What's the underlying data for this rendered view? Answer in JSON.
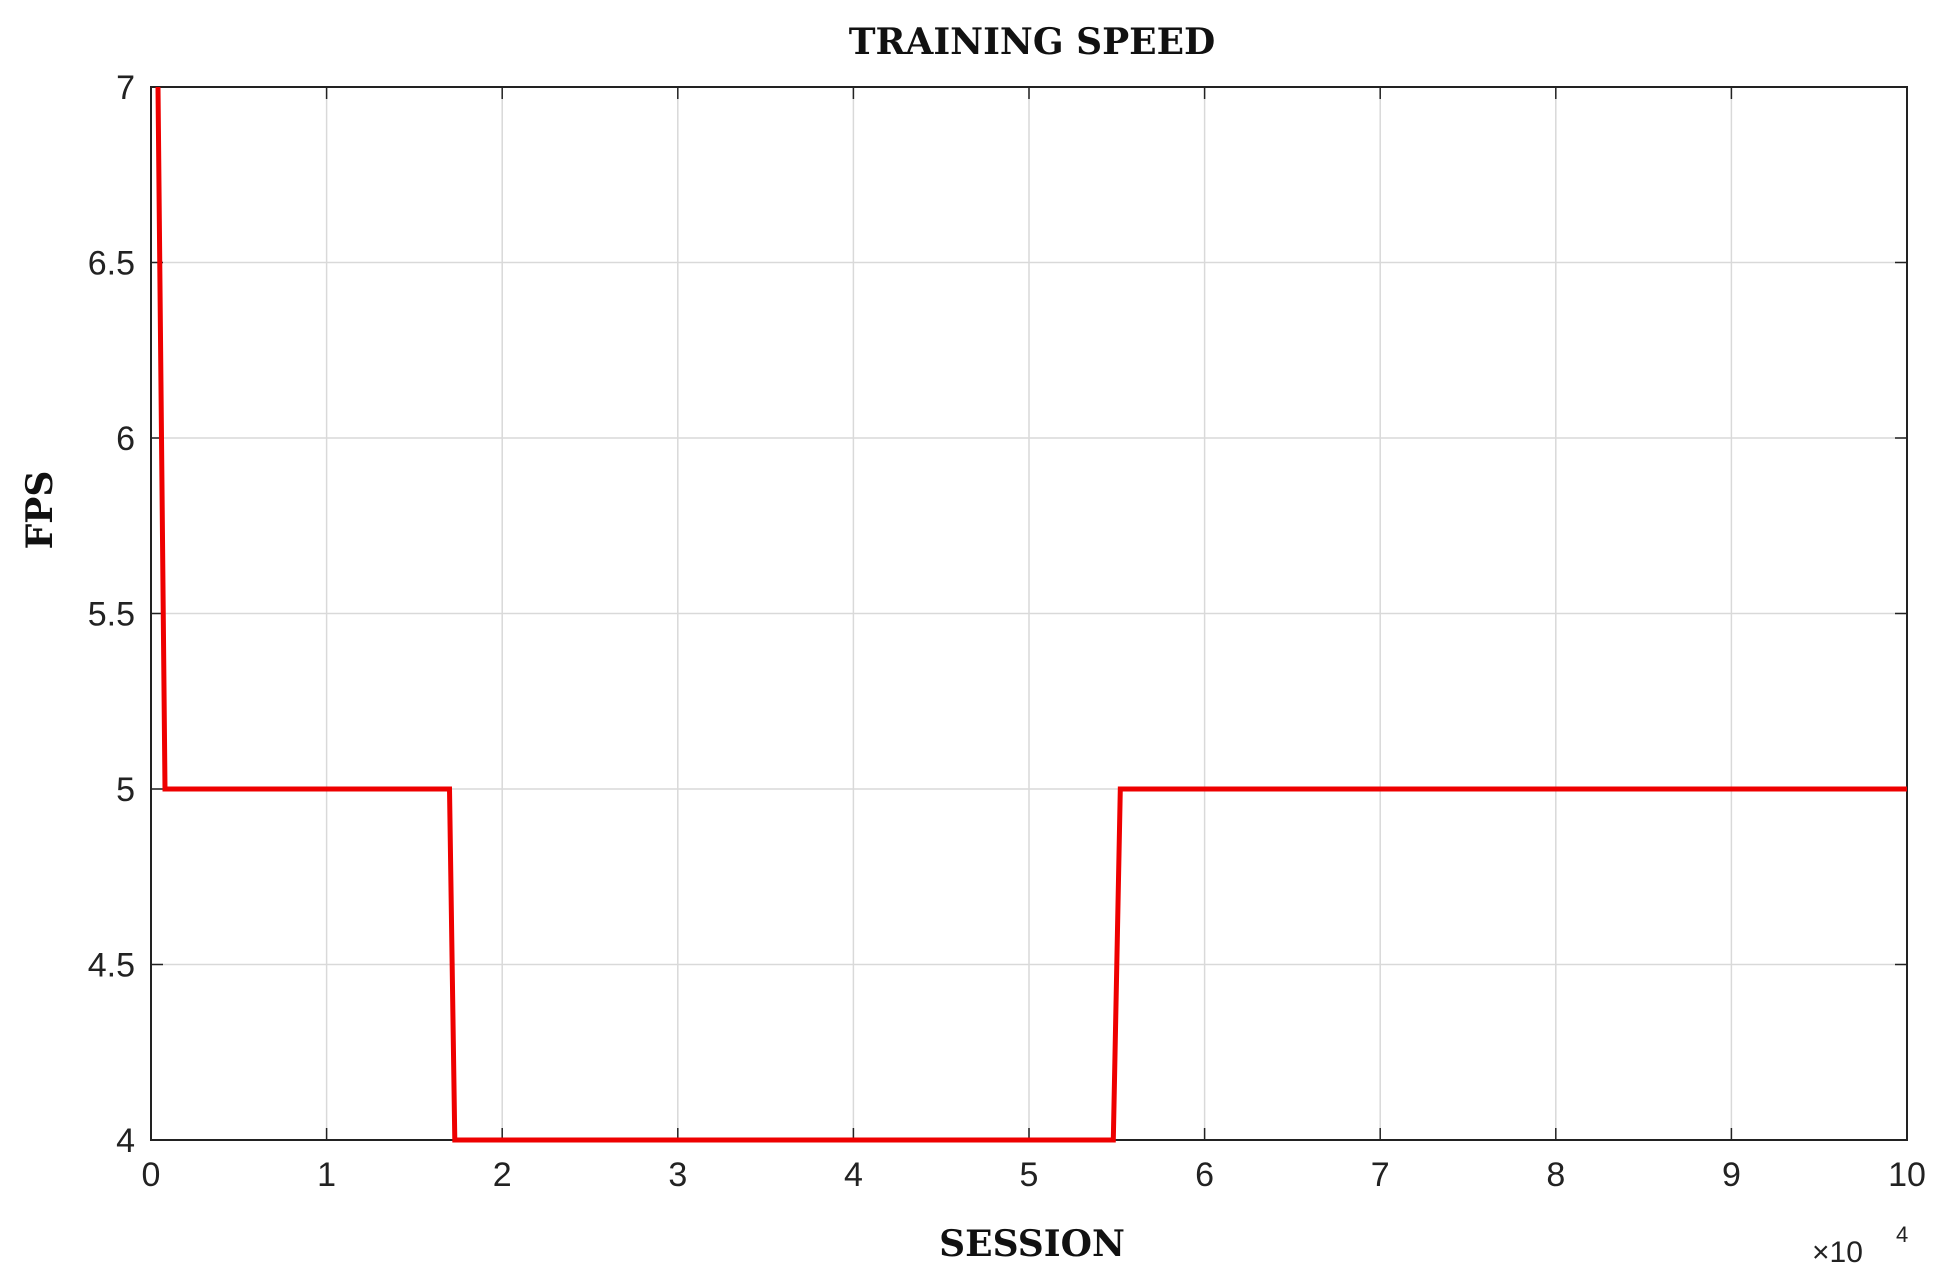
{
  "chart_data": {
    "type": "line",
    "title": "TRAINING SPEED",
    "xlabel": "SESSION",
    "ylabel": "FPS",
    "x_multiplier": "×10",
    "x_multiplier_exponent": "4",
    "xlim": [
      0,
      10
    ],
    "ylim": [
      4,
      7
    ],
    "xticks": [
      "0",
      "1",
      "2",
      "3",
      "4",
      "5",
      "6",
      "7",
      "8",
      "9",
      "10"
    ],
    "yticks": [
      "4",
      "4.5",
      "5",
      "5.5",
      "6",
      "6.5",
      "7"
    ],
    "grid": true,
    "series": [
      {
        "color": "#ee0000",
        "x": [
          0.04,
          0.08,
          1.7,
          1.73,
          5.48,
          5.52,
          10
        ],
        "y": [
          7,
          5,
          5,
          4,
          4,
          5,
          5
        ]
      }
    ]
  }
}
